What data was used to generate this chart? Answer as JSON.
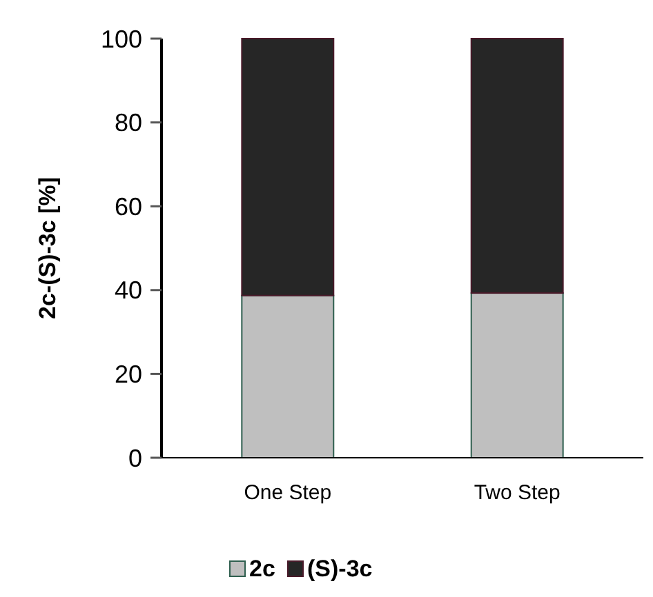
{
  "chart_data": {
    "type": "bar",
    "stacked": true,
    "ylabel": "2c-(S)-3c [%]",
    "categories": [
      "One Step",
      "Two Step"
    ],
    "series": [
      {
        "name": "2c",
        "color": "#bfbfbf",
        "values": [
          38.7,
          39.3
        ]
      },
      {
        "name": "(S)-3c",
        "color": "#262626",
        "values": [
          61.3,
          60.7
        ]
      }
    ],
    "ylim": [
      0,
      100
    ],
    "yticks": [
      0,
      20,
      40,
      60,
      80,
      100
    ],
    "legend": "bottom"
  }
}
